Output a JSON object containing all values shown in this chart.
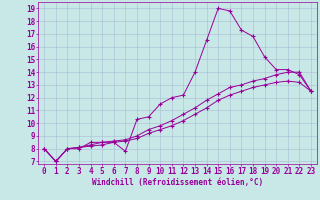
{
  "xlabel": "Windchill (Refroidissement éolien,°C)",
  "bg_color": "#c8e8e8",
  "line_color": "#990099",
  "xlim": [
    -0.5,
    23.5
  ],
  "ylim": [
    6.8,
    19.5
  ],
  "yticks": [
    7,
    8,
    9,
    10,
    11,
    12,
    13,
    14,
    15,
    16,
    17,
    18,
    19
  ],
  "xticks": [
    0,
    1,
    2,
    3,
    4,
    5,
    6,
    7,
    8,
    9,
    10,
    11,
    12,
    13,
    14,
    15,
    16,
    17,
    18,
    19,
    20,
    21,
    22,
    23
  ],
  "series": [
    {
      "x": [
        0,
        1,
        2,
        3,
        4,
        5,
        6,
        7,
        8,
        9,
        10,
        11,
        12,
        13,
        14,
        15,
        16,
        17,
        18,
        19,
        20,
        21,
        22,
        23
      ],
      "y": [
        8.0,
        7.0,
        8.0,
        8.0,
        8.5,
        8.5,
        8.5,
        7.8,
        10.3,
        10.5,
        11.5,
        12.0,
        12.2,
        14.0,
        16.5,
        19.0,
        18.8,
        17.3,
        16.8,
        15.2,
        14.2,
        14.2,
        13.8,
        12.5
      ]
    },
    {
      "x": [
        0,
        1,
        2,
        3,
        4,
        5,
        6,
        7,
        8,
        9,
        10,
        11,
        12,
        13,
        14,
        15,
        16,
        17,
        18,
        19,
        20,
        21,
        22,
        23
      ],
      "y": [
        8.0,
        7.0,
        8.0,
        8.1,
        8.3,
        8.5,
        8.6,
        8.7,
        9.0,
        9.5,
        9.8,
        10.2,
        10.7,
        11.2,
        11.8,
        12.3,
        12.8,
        13.0,
        13.3,
        13.5,
        13.8,
        14.0,
        14.0,
        12.5
      ]
    },
    {
      "x": [
        0,
        1,
        2,
        3,
        4,
        5,
        6,
        7,
        8,
        9,
        10,
        11,
        12,
        13,
        14,
        15,
        16,
        17,
        18,
        19,
        20,
        21,
        22,
        23
      ],
      "y": [
        8.0,
        7.0,
        8.0,
        8.1,
        8.2,
        8.3,
        8.5,
        8.6,
        8.8,
        9.2,
        9.5,
        9.8,
        10.2,
        10.7,
        11.2,
        11.8,
        12.2,
        12.5,
        12.8,
        13.0,
        13.2,
        13.3,
        13.2,
        12.5
      ]
    }
  ],
  "grid_color": "#aabbd4",
  "marker": "+",
  "tick_fontsize": 5.5,
  "xlabel_fontsize": 5.5
}
